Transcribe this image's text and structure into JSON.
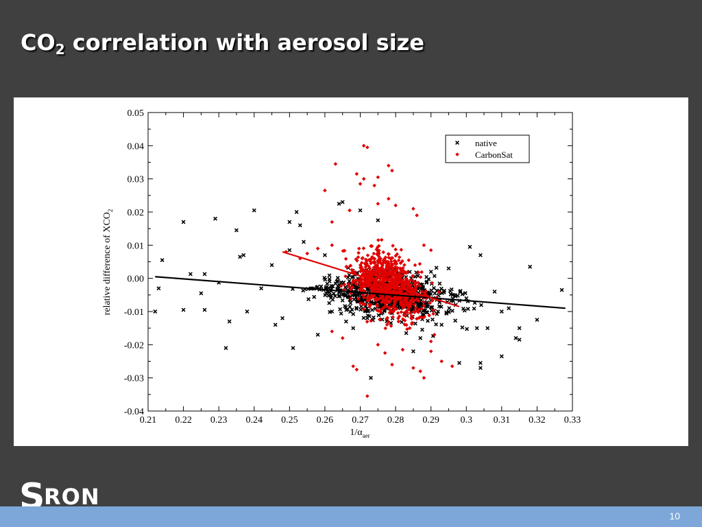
{
  "slide": {
    "title_main": "CO",
    "title_sub": "2",
    "title_rest": " correlation with aerosol size",
    "page_number": "10"
  },
  "logo": {
    "s": "S",
    "rest": "RON"
  },
  "colors": {
    "background": "#404040",
    "bottom_bar": "#7da7d9",
    "native": "#000000",
    "carbonsat": "#e00000"
  },
  "chart_data": {
    "type": "scatter",
    "xlabel": "1/α",
    "xlabel_sub": "aer",
    "ylabel": "relative difference of XCO",
    "ylabel_sub": "2",
    "xlim": [
      0.21,
      0.33
    ],
    "ylim": [
      -0.04,
      0.05
    ],
    "x_ticks": [
      "0.21",
      "0.22",
      "0.23",
      "0.24",
      "0.25",
      "0.26",
      "0.27",
      "0.28",
      "0.29",
      "0.3",
      "0.31",
      "0.32",
      "0.33"
    ],
    "y_ticks": [
      "-0.04",
      "-0.03",
      "-0.02",
      "-0.01",
      "0.00",
      "0.01",
      "0.02",
      "0.03",
      "0.04",
      "0.05"
    ],
    "legend_position": "top-right",
    "series": [
      {
        "name": "native",
        "marker": "x",
        "color": "#000000",
        "trend": [
          [
            0.212,
            0.0005
          ],
          [
            0.328,
            -0.009
          ]
        ],
        "points": [
          [
            0.212,
            -0.01
          ],
          [
            0.214,
            0.0055
          ],
          [
            0.213,
            -0.003
          ],
          [
            0.22,
            0.017
          ],
          [
            0.22,
            -0.0095
          ],
          [
            0.222,
            0.0013
          ],
          [
            0.225,
            -0.0045
          ],
          [
            0.226,
            -0.0095
          ],
          [
            0.226,
            0.0013
          ],
          [
            0.229,
            0.018
          ],
          [
            0.23,
            -0.0013
          ],
          [
            0.232,
            -0.021
          ],
          [
            0.233,
            -0.013
          ],
          [
            0.235,
            0.0145
          ],
          [
            0.236,
            0.0065
          ],
          [
            0.237,
            0.007
          ],
          [
            0.238,
            -0.01
          ],
          [
            0.24,
            0.0205
          ],
          [
            0.242,
            -0.003
          ],
          [
            0.245,
            0.004
          ],
          [
            0.246,
            -0.014
          ],
          [
            0.248,
            -0.012
          ],
          [
            0.25,
            0.0085
          ],
          [
            0.25,
            0.017
          ],
          [
            0.251,
            -0.021
          ],
          [
            0.252,
            0.02
          ],
          [
            0.253,
            0.016
          ],
          [
            0.254,
            0.011
          ],
          [
            0.256,
            -0.003
          ],
          [
            0.258,
            -0.017
          ],
          [
            0.26,
            0.007
          ],
          [
            0.262,
            -0.01
          ],
          [
            0.264,
            0.0225
          ],
          [
            0.265,
            0.023
          ],
          [
            0.266,
            -0.013
          ],
          [
            0.268,
            -0.015
          ],
          [
            0.27,
            0.0205
          ],
          [
            0.272,
            -0.012
          ],
          [
            0.273,
            -0.03
          ],
          [
            0.275,
            0.0175
          ],
          [
            0.283,
            -0.0165
          ],
          [
            0.285,
            -0.022
          ],
          [
            0.287,
            -0.018
          ],
          [
            0.29,
            0.002
          ],
          [
            0.292,
            -0.01
          ],
          [
            0.293,
            -0.014
          ],
          [
            0.295,
            0.003
          ],
          [
            0.297,
            -0.008
          ],
          [
            0.298,
            -0.0255
          ],
          [
            0.3,
            -0.006
          ],
          [
            0.301,
            0.0095
          ],
          [
            0.303,
            -0.015
          ],
          [
            0.304,
            0.007
          ],
          [
            0.304,
            -0.0255
          ],
          [
            0.304,
            -0.027
          ],
          [
            0.306,
            -0.015
          ],
          [
            0.308,
            -0.004
          ],
          [
            0.31,
            -0.0235
          ],
          [
            0.31,
            -0.01
          ],
          [
            0.312,
            -0.009
          ],
          [
            0.314,
            -0.018
          ],
          [
            0.315,
            -0.0185
          ],
          [
            0.315,
            -0.015
          ],
          [
            0.318,
            0.0035
          ],
          [
            0.32,
            -0.0125
          ],
          [
            0.327,
            -0.0035
          ]
        ]
      },
      {
        "name": "CarbonSat",
        "marker": "diamond",
        "color": "#e00000",
        "trend": [
          [
            0.248,
            0.008
          ],
          [
            0.298,
            -0.0085
          ]
        ],
        "points": [
          [
            0.263,
            0.0345
          ],
          [
            0.267,
            0.0205
          ],
          [
            0.269,
            0.0315
          ],
          [
            0.27,
            0.0285
          ],
          [
            0.271,
            0.03
          ],
          [
            0.271,
            0.04
          ],
          [
            0.272,
            0.0395
          ],
          [
            0.274,
            0.028
          ],
          [
            0.275,
            0.0305
          ],
          [
            0.278,
            0.034
          ],
          [
            0.279,
            0.0325
          ],
          [
            0.278,
            0.024
          ],
          [
            0.28,
            0.022
          ],
          [
            0.275,
            0.0225
          ],
          [
            0.26,
            0.0265
          ],
          [
            0.262,
            0.017
          ],
          [
            0.285,
            0.021
          ],
          [
            0.286,
            0.019
          ],
          [
            0.29,
            0.0085
          ],
          [
            0.288,
            0.01
          ],
          [
            0.262,
            0.01
          ],
          [
            0.258,
            0.009
          ],
          [
            0.255,
            0.0075
          ],
          [
            0.249,
            0.008
          ],
          [
            0.253,
            0.006
          ],
          [
            0.268,
            -0.0265
          ],
          [
            0.269,
            -0.0275
          ],
          [
            0.272,
            -0.0355
          ],
          [
            0.277,
            -0.0225
          ],
          [
            0.279,
            -0.026
          ],
          [
            0.282,
            -0.0215
          ],
          [
            0.285,
            -0.027
          ],
          [
            0.287,
            -0.028
          ],
          [
            0.288,
            -0.03
          ],
          [
            0.29,
            -0.022
          ],
          [
            0.293,
            -0.025
          ],
          [
            0.296,
            -0.0265
          ],
          [
            0.29,
            -0.019
          ],
          [
            0.275,
            -0.02
          ],
          [
            0.284,
            -0.015
          ],
          [
            0.265,
            -0.018
          ],
          [
            0.262,
            -0.016
          ]
        ]
      }
    ]
  }
}
